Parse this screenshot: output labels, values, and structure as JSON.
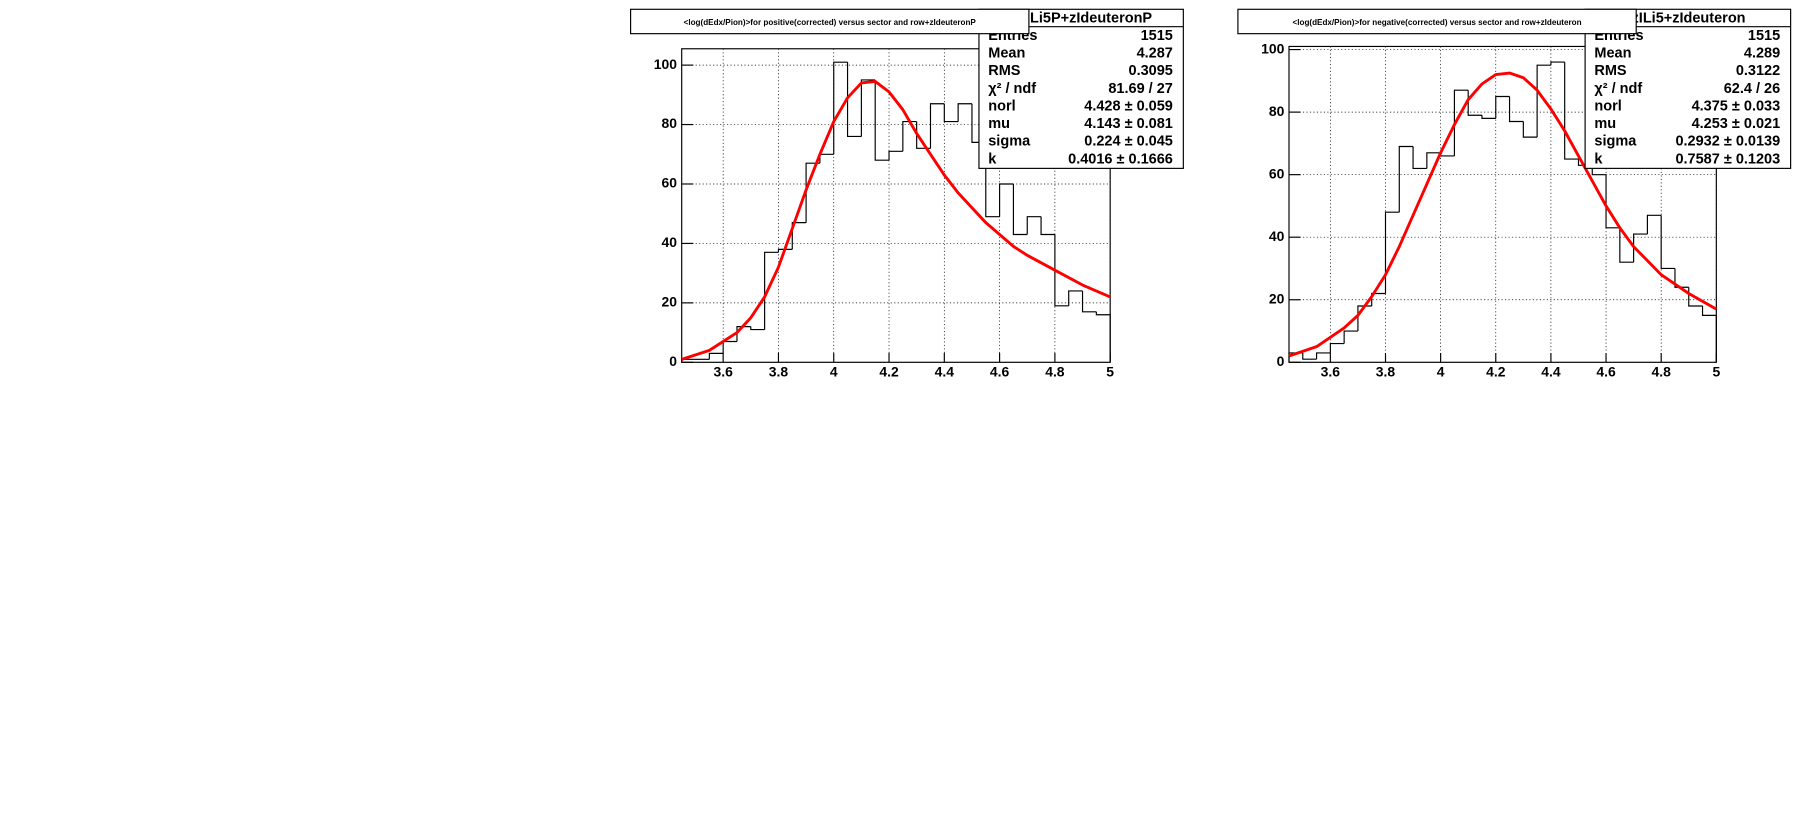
{
  "chart_data": [
    {
      "type": "histogram",
      "title": "<log(dEdx/Pion)>for positive(corrected) versus sector and row+zIdeuteronP",
      "bins": [
        3.45,
        3.5,
        3.55,
        3.6,
        3.65,
        3.7,
        3.75,
        3.8,
        3.85,
        3.9,
        3.95,
        4.0,
        4.05,
        4.1,
        4.15,
        4.2,
        4.25,
        4.3,
        4.35,
        4.4,
        4.45,
        4.5,
        4.55,
        4.6,
        4.65,
        4.7,
        4.75,
        4.8,
        4.85,
        4.9,
        4.95,
        5.0
      ],
      "values": [
        1,
        1,
        3,
        7,
        12,
        11,
        37,
        38,
        47,
        67,
        70,
        101,
        76,
        95,
        68,
        71,
        81,
        72,
        87,
        81,
        87,
        74,
        49,
        60,
        43,
        49,
        43,
        19,
        24,
        17,
        16
      ],
      "color": "#000000",
      "fit": {
        "color": "#ff0000",
        "x": [
          3.45,
          3.55,
          3.65,
          3.7,
          3.75,
          3.8,
          3.85,
          3.9,
          3.95,
          4.0,
          4.05,
          4.1,
          4.15,
          4.2,
          4.25,
          4.3,
          4.35,
          4.4,
          4.45,
          4.5,
          4.55,
          4.6,
          4.65,
          4.7,
          4.8,
          4.9,
          5.0
        ],
        "values": [
          1,
          4,
          10,
          15,
          22,
          32,
          45,
          58,
          70,
          81,
          89,
          94,
          94.5,
          91,
          85,
          77,
          70,
          63,
          57,
          52,
          47,
          43,
          39,
          36,
          31,
          26,
          22
        ]
      },
      "xlim": [
        3.45,
        5.0
      ],
      "ylim": [
        0,
        105.5
      ],
      "xticks": [
        3.6,
        3.8,
        4,
        4.2,
        4.4,
        4.6,
        4.8,
        5
      ],
      "yticks": [
        0,
        20,
        40,
        60,
        80,
        100
      ],
      "grid": true,
      "stats": {
        "title": "Li5P+zIdeuteronP",
        "rows": [
          [
            "Entries",
            "1515"
          ],
          [
            "Mean",
            "4.287"
          ],
          [
            "RMS",
            "0.3095"
          ],
          [
            "χ² / ndf",
            "81.69 / 27"
          ],
          [
            "norl",
            "4.428 ± 0.059"
          ],
          [
            "mu",
            "4.143 ± 0.081"
          ],
          [
            "sigma",
            "0.224 ± 0.045"
          ],
          [
            "k",
            "0.4016 ± 0.1666"
          ]
        ]
      }
    },
    {
      "type": "histogram",
      "title": "<log(dEdx/Pion)>for negative(corrected) versus sector and row+zIdeuteron",
      "bins": [
        3.45,
        3.5,
        3.55,
        3.6,
        3.65,
        3.7,
        3.75,
        3.8,
        3.85,
        3.9,
        3.95,
        4.0,
        4.05,
        4.1,
        4.15,
        4.2,
        4.25,
        4.3,
        4.35,
        4.4,
        4.45,
        4.5,
        4.55,
        4.6,
        4.65,
        4.7,
        4.75,
        4.8,
        4.85,
        4.9,
        4.95,
        5.0
      ],
      "values": [
        3,
        1,
        3,
        6,
        10,
        18,
        22,
        48,
        69,
        62,
        67,
        66,
        87,
        79,
        78,
        85,
        77,
        72,
        95,
        96,
        65,
        63,
        60,
        43,
        32,
        41,
        47,
        30,
        24,
        18,
        15
      ],
      "color": "#000000",
      "fit": {
        "color": "#ff0000",
        "x": [
          3.45,
          3.55,
          3.65,
          3.7,
          3.75,
          3.8,
          3.85,
          3.9,
          3.95,
          4.0,
          4.05,
          4.1,
          4.15,
          4.2,
          4.25,
          4.3,
          4.35,
          4.4,
          4.45,
          4.5,
          4.55,
          4.6,
          4.65,
          4.7,
          4.8,
          4.9,
          5.0
        ],
        "values": [
          2,
          5,
          11,
          15,
          21,
          28,
          37,
          47,
          57,
          67,
          76,
          84,
          89,
          92,
          92.5,
          91,
          87,
          81,
          74,
          66,
          58,
          50,
          43,
          37,
          28,
          22,
          17
        ]
      },
      "xlim": [
        3.45,
        5.0
      ],
      "ylim": [
        0,
        101
      ],
      "xticks": [
        3.6,
        3.8,
        4,
        4.2,
        4.4,
        4.6,
        4.8,
        5
      ],
      "yticks": [
        0,
        20,
        40,
        60,
        80,
        100
      ],
      "grid": true,
      "stats": {
        "title": "zILi5+zIdeuteron",
        "rows": [
          [
            "Entries",
            "1515"
          ],
          [
            "Mean",
            "4.289"
          ],
          [
            "RMS",
            "0.3122"
          ],
          [
            "χ² / ndf",
            "62.4 / 26"
          ],
          [
            "norl",
            "4.375 ± 0.033"
          ],
          [
            "mu",
            "4.253 ± 0.021"
          ],
          [
            "sigma",
            "0.2932 ± 0.0139"
          ],
          [
            "k",
            "0.7587 ± 0.1203"
          ]
        ]
      }
    }
  ]
}
